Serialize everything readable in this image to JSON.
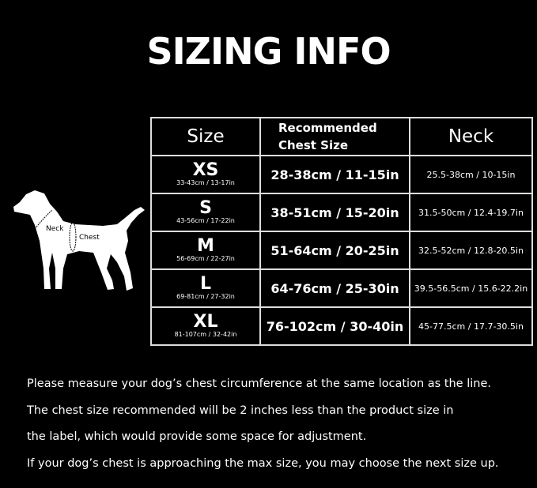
{
  "title": "SIZING INFO",
  "diagram": {
    "neck_label": "Neck",
    "chest_label": "Chest"
  },
  "table": {
    "headers": {
      "size": "Size",
      "chest_line1": "Recommended",
      "chest_line2": "Chest Size",
      "neck": "Neck"
    },
    "rows": [
      {
        "size": "XS",
        "product_size": "33-43cm / 13-17in",
        "chest": "28-38cm / 11-15in",
        "neck": "25.5-38cm / 10-15in"
      },
      {
        "size": "S",
        "product_size": "43-56cm / 17-22in",
        "chest": "38-51cm / 15-20in",
        "neck": "31.5-50cm / 12.4-19.7in"
      },
      {
        "size": "M",
        "product_size": "56-69cm / 22-27in",
        "chest": "51-64cm / 20-25in",
        "neck": "32.5-52cm / 12.8-20.5in"
      },
      {
        "size": "L",
        "product_size": "69-81cm / 27-32in",
        "chest": "64-76cm / 25-30in",
        "neck": "39.5-56.5cm / 15.6-22.2in"
      },
      {
        "size": "XL",
        "product_size": "81-107cm / 32-42in",
        "chest": "76-102cm / 30-40in",
        "neck": "45-77.5cm / 17.7-30.5in"
      }
    ]
  },
  "notes": [
    "Please measure your dog’s chest circumference at the same location as the line.",
    "The chest size recommended will be 2 inches less than the product size in",
    "the label, which would provide some space for adjustment.",
    "If your dog’s chest is approaching the max size, you may choose the next size up."
  ]
}
